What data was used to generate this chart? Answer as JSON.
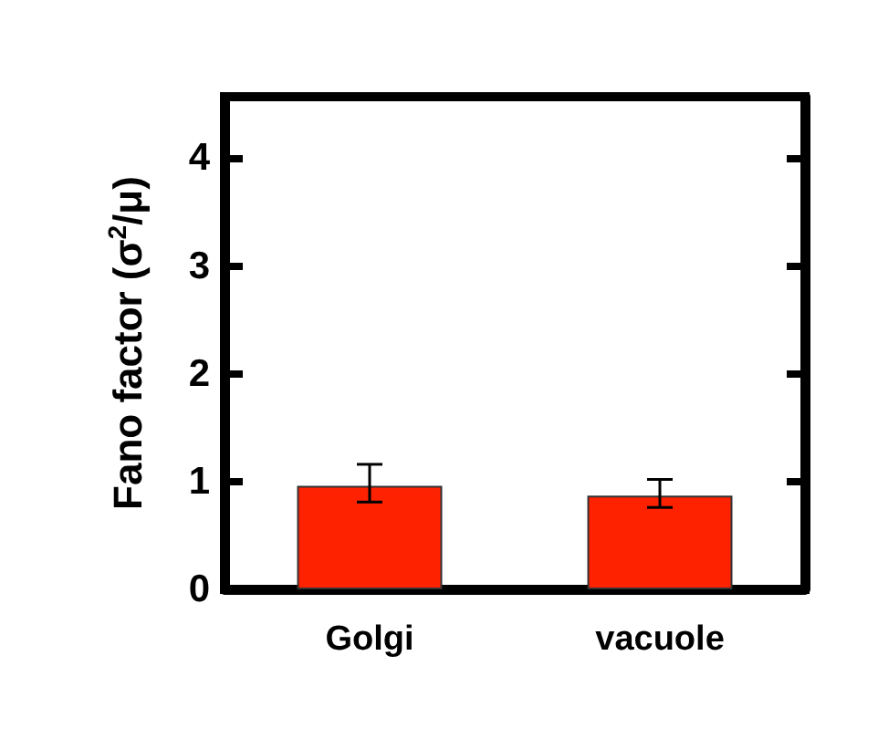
{
  "chart_data": {
    "type": "bar",
    "ylabel": "Fano factor (σ$^{2}$/μ)",
    "categories": [
      "Golgi",
      "vacuole"
    ],
    "values": [
      0.96,
      0.87
    ],
    "errors": [
      [
        0.81,
        1.16
      ],
      [
        0.76,
        1.02
      ]
    ],
    "color": "#ff2200",
    "ylim": [
      0,
      4.57
    ],
    "yticks": [
      0,
      1,
      2,
      3,
      4
    ],
    "grid": false
  }
}
